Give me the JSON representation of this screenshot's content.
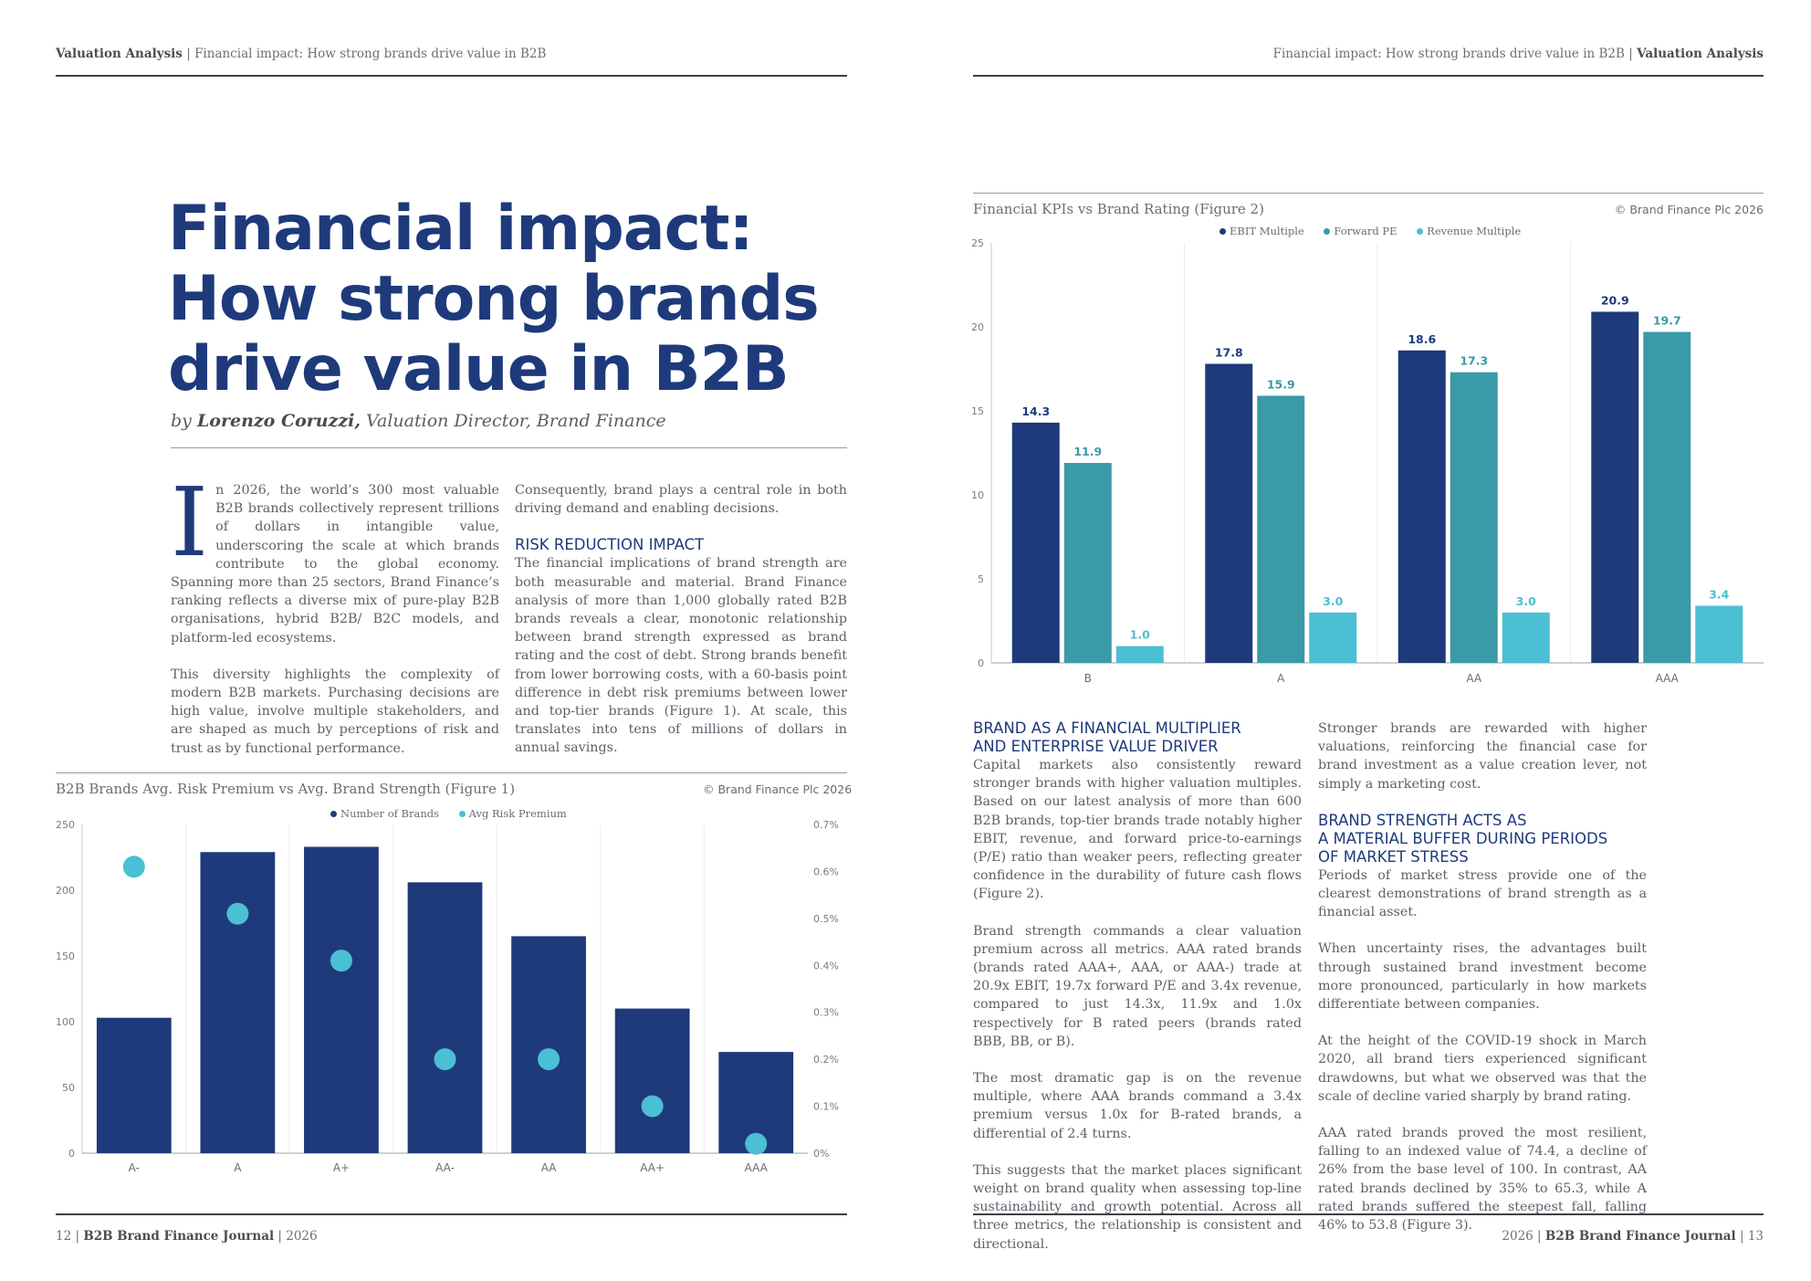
{
  "left_page": {
    "header": {
      "section": "Valuation Analysis",
      "separator": "|",
      "title": "Financial impact: How strong brands drive value in B2B"
    },
    "title_lines": [
      "Financial impact:",
      "How strong brands",
      "drive value in B2B"
    ],
    "byline": {
      "prefix": "by ",
      "author": "Lorenzo Coruzzi,",
      "role": " Valuation Director, Brand Finance"
    },
    "body_col1": {
      "drop_cap": "I",
      "p1": "n 2026, the world’s 300 most valuable B2B brands collectively represent trillions of dollars in intangible value, underscoring the scale at which brands contribute to the global economy. Spanning more than 25 sectors, Brand Finance’s ranking reflects a diverse mix of pure-play B2B organisations, hybrid B2B/ B2C models, and platform-led ecosystems.",
      "p2": "This diversity highlights the complexity of modern B2B markets. Purchasing decisions are high value, involve multiple stakeholders, and are shaped as much by perceptions of risk and trust as by functional performance."
    },
    "body_col2": {
      "p1": "Consequently, brand plays a central role in both driving demand and enabling decisions.",
      "heading": "RISK REDUCTION IMPACT",
      "p2": "The financial implications of brand strength are both measurable and material. Brand Finance analysis of more than 1,000 globally rated B2B brands reveals a clear, monotonic relationship between brand strength expressed as brand rating and the cost of debt. Strong brands benefit from lower borrowing costs, with a 60-basis point difference in debt risk premiums between lower and top-tier brands (Figure 1). At scale, this translates into tens of millions of dollars in annual savings."
    },
    "figure1": {
      "title": "B2B Brands Avg. Risk Premium vs Avg. Brand Strength (Figure 1)",
      "copyright": "© Brand Finance Plc 2026",
      "legend": [
        "Number of Brands",
        "Avg Risk Premium"
      ]
    },
    "footer": {
      "page": "12",
      "separator": "|",
      "journal": "B2B Brand Finance Journal",
      "year": "2026"
    }
  },
  "right_page": {
    "header": {
      "title": "Financial impact: How strong brands drive value in B2B",
      "separator": "|",
      "section": "Valuation Analysis"
    },
    "figure2": {
      "title": "Financial KPIs vs Brand Rating (Figure 2)",
      "copyright": "© Brand Finance Plc 2026",
      "legend": [
        "EBIT Multiple",
        "Forward PE",
        "Revenue Multiple"
      ]
    },
    "col1": {
      "heading_lines": [
        "BRAND AS A FINANCIAL MULTIPLIER",
        "AND ENTERPRISE VALUE DRIVER"
      ],
      "p1": "Capital markets also consistently reward stronger brands with higher valuation multiples. Based on our latest analysis of more than 600 B2B brands, top-tier brands trade notably higher EBIT, revenue, and forward price-to-earnings (P/E) ratio than weaker peers, reflecting greater confidence in the durability of future cash flows (Figure 2).",
      "p2": "Brand strength commands a clear valuation premium across all metrics. AAA rated brands (brands rated AAA+, AAA, or AAA-) trade at 20.9x EBIT, 19.7x forward P/E and 3.4x revenue, compared to just 14.3x, 11.9x and 1.0x respectively for B rated peers (brands rated BBB, BB, or B).",
      "p3": "The most dramatic gap is on the revenue multiple, where AAA brands command a 3.4x premium versus 1.0x for B-rated brands, a differential of 2.4 turns.",
      "p4": "This suggests that the market places significant weight on brand quality when assessing top-line sustainability and growth potential. Across all three metrics, the relationship is consistent and directional."
    },
    "col2": {
      "p1": "Stronger brands are rewarded with higher valuations, reinforcing the financial case for brand investment as a value creation lever, not simply a marketing cost.",
      "heading_lines": [
        "BRAND STRENGTH ACTS AS",
        "A MATERIAL BUFFER DURING PERIODS",
        "OF MARKET STRESS"
      ],
      "p2": "Periods of market stress provide one of the clearest demonstrations of brand strength as a financial asset.",
      "p3": "When uncertainty rises, the advantages built through sustained brand investment become more pronounced, particularly in how markets differentiate between companies.",
      "p4": "At the height of the COVID-19 shock in March 2020, all brand tiers experienced significant drawdowns, but what we observed was that the scale of decline varied sharply by brand rating.",
      "p5": "AAA rated brands proved the most resilient, falling to an indexed value of 74.4, a decline of 26% from the base level of 100. In contrast, AA rated brands declined by 35% to 65.3, while A rated brands suffered the steepest fall, falling 46% to 53.8 (Figure 3)."
    },
    "footer": {
      "year": "2026",
      "separator": "|",
      "journal": "B2B Brand Finance Journal",
      "page": "13"
    }
  },
  "colors": {
    "navy": "#1e3a7b",
    "teal": "#3a9aa8",
    "cyan": "#4bbfd3",
    "text": "#5c6068"
  },
  "chart_data": [
    {
      "type": "bar",
      "title": "B2B Brands Avg. Risk Premium vs Avg. Brand Strength (Figure 1)",
      "categories": [
        "A-",
        "A",
        "A+",
        "AA-",
        "AA",
        "AA+",
        "AAA"
      ],
      "series": [
        {
          "name": "Number of Brands",
          "type": "bar",
          "axis": "left",
          "values": [
            103,
            229,
            233,
            206,
            165,
            110,
            77
          ]
        },
        {
          "name": "Avg Risk Premium",
          "type": "scatter",
          "axis": "right",
          "values": [
            0.0061,
            0.0051,
            0.0041,
            0.002,
            0.002,
            0.001,
            0.0002
          ]
        }
      ],
      "y_left": {
        "range": [
          0,
          250
        ],
        "ticks": [
          "0",
          "50",
          "100",
          "150",
          "200",
          "250"
        ]
      },
      "y_right": {
        "range": [
          0,
          0.007
        ],
        "ticks": [
          "0%",
          "0.1%",
          "0.2%",
          "0.3%",
          "0.4%",
          "0.5%",
          "0.6%",
          "0.7%"
        ]
      },
      "legend": "top-center"
    },
    {
      "type": "bar",
      "title": "Financial KPIs vs Brand Rating (Figure 2)",
      "categories": [
        "B",
        "A",
        "AA",
        "AAA"
      ],
      "series": [
        {
          "name": "EBIT Multiple",
          "values": [
            14.3,
            17.8,
            18.6,
            20.9
          ]
        },
        {
          "name": "Forward PE",
          "values": [
            11.9,
            15.9,
            17.3,
            19.7
          ]
        },
        {
          "name": "Revenue Multiple",
          "values": [
            1.0,
            3.0,
            3.0,
            3.4
          ]
        }
      ],
      "value_labels": [
        "14.3",
        "11.9",
        "1.0",
        "17.8",
        "15.9",
        "3.0",
        "18.6",
        "17.3",
        "3.0",
        "20.9",
        "19.7",
        "3.4"
      ],
      "y": {
        "range": [
          0,
          25
        ],
        "ticks": [
          "0",
          "5",
          "10",
          "15",
          "20",
          "25"
        ]
      },
      "legend": "top-center"
    }
  ]
}
